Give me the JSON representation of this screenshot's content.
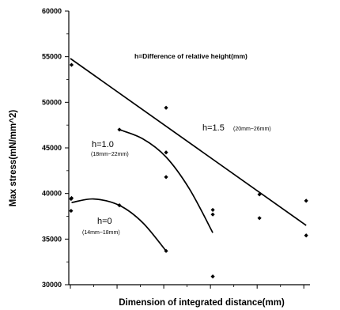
{
  "chart_data": {
    "type": "scatter",
    "title": "",
    "xlabel": "Dimension of integrated distance(mm)",
    "ylabel": "Max stress(mN/mm^2)",
    "annotation": "h=Difference of relative height(mm)",
    "ylim": [
      30000,
      60000
    ],
    "yticks": [
      "30000",
      "35000",
      "40000",
      "45000",
      "50000",
      "55000",
      "60000"
    ],
    "xlim": [
      0,
      100
    ],
    "grid": false,
    "points": [
      {
        "x": 0.5,
        "y": 54100
      },
      {
        "x": 0.5,
        "y": 39500
      },
      {
        "x": 0.3,
        "y": 39400
      },
      {
        "x": 0.3,
        "y": 38100
      },
      {
        "x": 21,
        "y": 47000
      },
      {
        "x": 21,
        "y": 38700
      },
      {
        "x": 41,
        "y": 49400
      },
      {
        "x": 41,
        "y": 44500
      },
      {
        "x": 41,
        "y": 41800
      },
      {
        "x": 41,
        "y": 33700
      },
      {
        "x": 61,
        "y": 38200
      },
      {
        "x": 61,
        "y": 37700
      },
      {
        "x": 61,
        "y": 30900
      },
      {
        "x": 81,
        "y": 39900
      },
      {
        "x": 81,
        "y": 37300
      },
      {
        "x": 101,
        "y": 39200
      },
      {
        "x": 101,
        "y": 35400
      }
    ],
    "series": [
      {
        "name": "h=1.5",
        "range_label": "(20mm~26mm)",
        "fit": "linear",
        "x": [
          0,
          101
        ],
        "y": [
          54800,
          36500
        ]
      },
      {
        "name": "h=1.0",
        "range_label": "(18mm~22mm)",
        "fit": "curve",
        "x": [
          21,
          31,
          41,
          51,
          61
        ],
        "y": [
          47000,
          46000,
          44000,
          40500,
          35700
        ]
      },
      {
        "name": "h=0",
        "range_label": "(14mm~18mm)",
        "fit": "curve",
        "x": [
          0.5,
          10,
          21,
          31,
          41
        ],
        "y": [
          39000,
          39400,
          38700,
          36800,
          33700
        ]
      }
    ]
  }
}
